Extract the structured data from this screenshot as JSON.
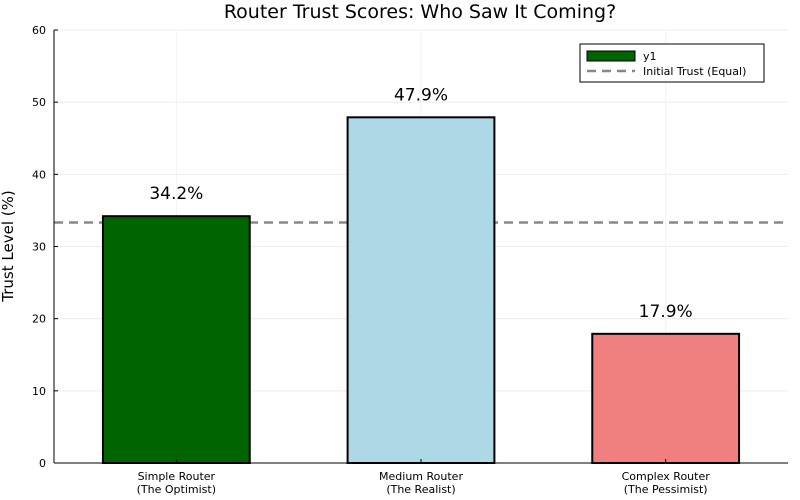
{
  "chart_data": {
    "type": "bar",
    "title": "Router Trust Scores: Who Saw It Coming?",
    "xlabel": "",
    "ylabel": "Trust Level (%)",
    "ylim": [
      0,
      60
    ],
    "yticks": [
      0,
      10,
      20,
      30,
      40,
      50,
      60
    ],
    "grid": true,
    "categories": [
      [
        "Simple Router",
        "(The Optimist)"
      ],
      [
        "Medium Router",
        "(The Realist)"
      ],
      [
        "Complex Router",
        "(The Pessimist)"
      ]
    ],
    "values": [
      34.2,
      47.9,
      17.9
    ],
    "data_labels": [
      "34.2%",
      "47.9%",
      "17.9%"
    ],
    "bar_colors": [
      "#006400",
      "#add8e6",
      "#f08080"
    ],
    "reference_line": {
      "name": "Initial Trust (Equal)",
      "value": 33.33,
      "color": "#888888",
      "style": "dashed"
    },
    "legend": {
      "position": "top-right",
      "entries": [
        {
          "label": "y1",
          "color": "#006400",
          "kind": "bar"
        },
        {
          "label": "Initial Trust (Equal)",
          "color": "#888888",
          "kind": "dashed-line"
        }
      ]
    }
  }
}
